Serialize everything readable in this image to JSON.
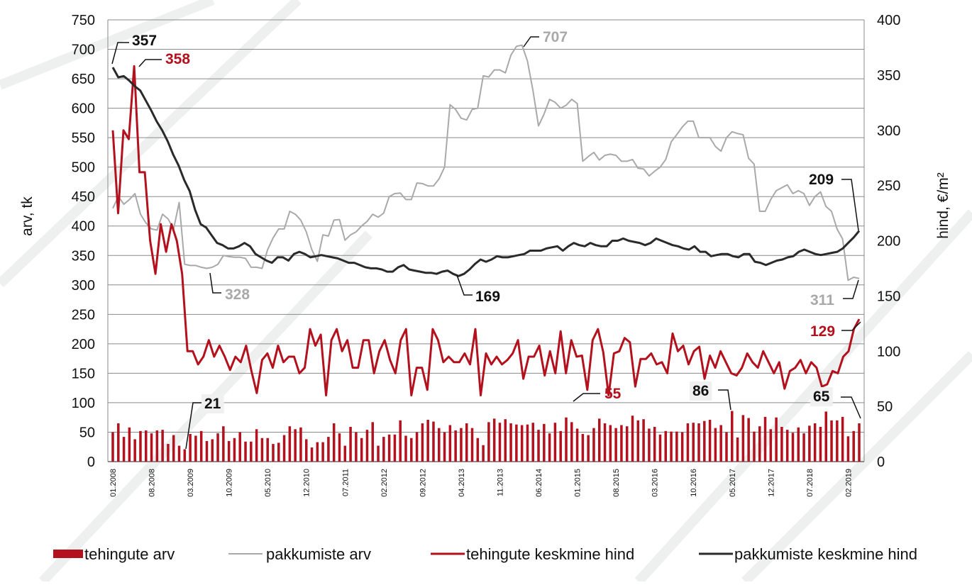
{
  "chart_data": {
    "type": "bar",
    "y_left_label": "arv, tk",
    "y_right_label": "hind, €/m²",
    "y_left_lim": [
      0,
      750
    ],
    "y_right_lim": [
      0,
      400
    ],
    "y_left_ticks": [
      "0",
      "50",
      "100",
      "150",
      "200",
      "250",
      "300",
      "350",
      "400",
      "450",
      "500",
      "550",
      "600",
      "650",
      "700",
      "750"
    ],
    "y_right_ticks": [
      "0",
      "50",
      "100",
      "150",
      "200",
      "250",
      "300",
      "350",
      "400"
    ],
    "x_tick_labels": [
      "01.2008",
      "08.2008",
      "03.2009",
      "10.2009",
      "05.2010",
      "12.2010",
      "07.2011",
      "02.2012",
      "09.2012",
      "04.2013",
      "11.2013",
      "06.2014",
      "01.2015",
      "08.2015",
      "03.2016",
      "10.2016",
      "05.2017",
      "12.2017",
      "07.2018",
      "02.2019"
    ],
    "grid": true,
    "colors": {
      "bars": "#b3111d",
      "offers_count": "#a9a9a9",
      "deal_price": "#b3111d",
      "offer_price": "#2a2a2a",
      "annotation_black": "#111111",
      "annotation_red": "#b3111d",
      "annotation_grey": "#a9a9a9"
    },
    "series": [
      {
        "name": "tehingute arv",
        "type": "bar",
        "axis": "left",
        "values": [
          50,
          65,
          42,
          58,
          38,
          52,
          53,
          48,
          53,
          54,
          30,
          45,
          27,
          21,
          47,
          44,
          52,
          35,
          38,
          48,
          60,
          35,
          40,
          50,
          34,
          34,
          55,
          40,
          40,
          30,
          32,
          45,
          60,
          55,
          58,
          38,
          24,
          33,
          33,
          42,
          65,
          48,
          27,
          59,
          50,
          40,
          54,
          67,
          27,
          42,
          46,
          46,
          70,
          44,
          40,
          50,
          65,
          71,
          68,
          57,
          50,
          62,
          53,
          57,
          65,
          57,
          40,
          28,
          67,
          73,
          66,
          72,
          65,
          63,
          62,
          63,
          66,
          54,
          64,
          48,
          66,
          52,
          75,
          67,
          56,
          47,
          45,
          57,
          73,
          65,
          62,
          57,
          62,
          60,
          78,
          70,
          72,
          56,
          59,
          46,
          52,
          51,
          51,
          50,
          65,
          66,
          65,
          69,
          71,
          57,
          62,
          50,
          86,
          41,
          79,
          74,
          51,
          60,
          76,
          55,
          75,
          59,
          54,
          49,
          58,
          48,
          61,
          65,
          59,
          85,
          70,
          70,
          76,
          43,
          52,
          65
        ]
      },
      {
        "name": "pakkumiste arv",
        "type": "line",
        "axis": "left",
        "values": [
          430,
          450,
          437,
          445,
          455,
          420,
          405,
          395,
          393,
          420,
          412,
          395,
          440,
          335,
          333,
          333,
          330,
          328,
          330,
          335,
          350,
          348,
          347,
          347,
          345,
          330,
          330,
          328,
          360,
          380,
          395,
          395,
          425,
          420,
          410,
          390,
          360,
          340,
          385,
          383,
          410,
          411,
          376,
          385,
          390,
          400,
          408,
          420,
          415,
          422,
          450,
          455,
          456,
          445,
          445,
          473,
          472,
          468,
          468,
          480,
          500,
          606,
          598,
          583,
          580,
          598,
          600,
          655,
          653,
          665,
          665,
          660,
          690,
          705,
          707,
          680,
          630,
          570,
          590,
          615,
          610,
          600,
          605,
          615,
          608,
          510,
          518,
          525,
          512,
          520,
          522,
          520,
          510,
          510,
          513,
          498,
          497,
          485,
          493,
          500,
          513,
          543,
          555,
          568,
          578,
          578,
          550,
          550,
          550,
          535,
          527,
          550,
          560,
          557,
          555,
          515,
          505,
          425,
          425,
          445,
          460,
          465,
          470,
          455,
          460,
          455,
          435,
          450,
          458,
          433,
          425,
          395,
          378,
          308,
          313,
          311
        ]
      },
      {
        "name": "tehingute keskmine hind",
        "type": "line",
        "axis": "right",
        "values": [
          300,
          225,
          300,
          292,
          358,
          262,
          262,
          200,
          170,
          215,
          190,
          215,
          200,
          170,
          100,
          100,
          88,
          95,
          110,
          95,
          105,
          95,
          83,
          95,
          90,
          105,
          82,
          62,
          92,
          98,
          85,
          105,
          90,
          95,
          95,
          80,
          85,
          120,
          105,
          115,
          60,
          110,
          120,
          100,
          110,
          85,
          85,
          110,
          110,
          80,
          100,
          110,
          92,
          80,
          110,
          120,
          60,
          85,
          85,
          65,
          120,
          110,
          90,
          95,
          90,
          90,
          98,
          88,
          120,
          60,
          98,
          88,
          95,
          88,
          92,
          98,
          110,
          75,
          95,
          95,
          105,
          78,
          100,
          80,
          118,
          80,
          110,
          95,
          96,
          65,
          110,
          120,
          99,
          60,
          98,
          100,
          112,
          108,
          68,
          93,
          93,
          98,
          88,
          90,
          80,
          116,
          100,
          105,
          88,
          100,
          104,
          75,
          96,
          85,
          100,
          90,
          80,
          78,
          85,
          98,
          90,
          85,
          100,
          90,
          80,
          90,
          66,
          82,
          85,
          92,
          80,
          90,
          85,
          68,
          70,
          82,
          80,
          95,
          100,
          120,
          129
        ]
      },
      {
        "name": "pakkumiste keskmine hind",
        "type": "line",
        "axis": "right",
        "values": [
          357,
          348,
          349,
          345,
          340,
          336,
          327,
          318,
          308,
          300,
          290,
          278,
          268,
          255,
          245,
          228,
          215,
          212,
          205,
          198,
          196,
          193,
          193,
          195,
          198,
          195,
          188,
          185,
          182,
          180,
          185,
          185,
          182,
          188,
          190,
          188,
          185,
          186,
          187,
          186,
          185,
          184,
          182,
          180,
          180,
          178,
          176,
          175,
          175,
          174,
          172,
          172,
          176,
          178,
          174,
          173,
          172,
          171,
          171,
          170,
          172,
          173,
          170,
          168,
          170,
          174,
          179,
          183,
          181,
          183,
          186,
          185,
          185,
          186,
          187,
          188,
          191,
          191,
          191,
          193,
          194,
          195,
          191,
          195,
          198,
          196,
          195,
          198,
          196,
          195,
          195,
          200,
          200,
          202,
          200,
          199,
          198,
          196,
          198,
          202,
          200,
          198,
          196,
          195,
          193,
          192,
          195,
          190,
          190,
          186,
          187,
          188,
          188,
          186,
          185,
          188,
          188,
          181,
          180,
          178,
          180,
          182,
          183,
          185,
          186,
          190,
          192,
          190,
          188,
          187,
          188,
          189,
          190,
          193,
          198,
          203,
          209
        ]
      }
    ],
    "annotations": [
      {
        "text": "357",
        "color": "black"
      },
      {
        "text": "358",
        "color": "red"
      },
      {
        "text": "707",
        "color": "grey"
      },
      {
        "text": "328",
        "color": "grey"
      },
      {
        "text": "169",
        "color": "black"
      },
      {
        "text": "209",
        "color": "black"
      },
      {
        "text": "311",
        "color": "grey"
      },
      {
        "text": "129",
        "color": "red"
      },
      {
        "text": "55",
        "color": "red"
      },
      {
        "text": "21",
        "color": "black"
      },
      {
        "text": "86",
        "color": "black"
      },
      {
        "text": "65",
        "color": "black"
      }
    ],
    "legend": [
      "tehingute arv",
      "pakkumiste arv",
      "tehingute keskmine hind",
      "pakkumiste keskmine hind"
    ]
  }
}
